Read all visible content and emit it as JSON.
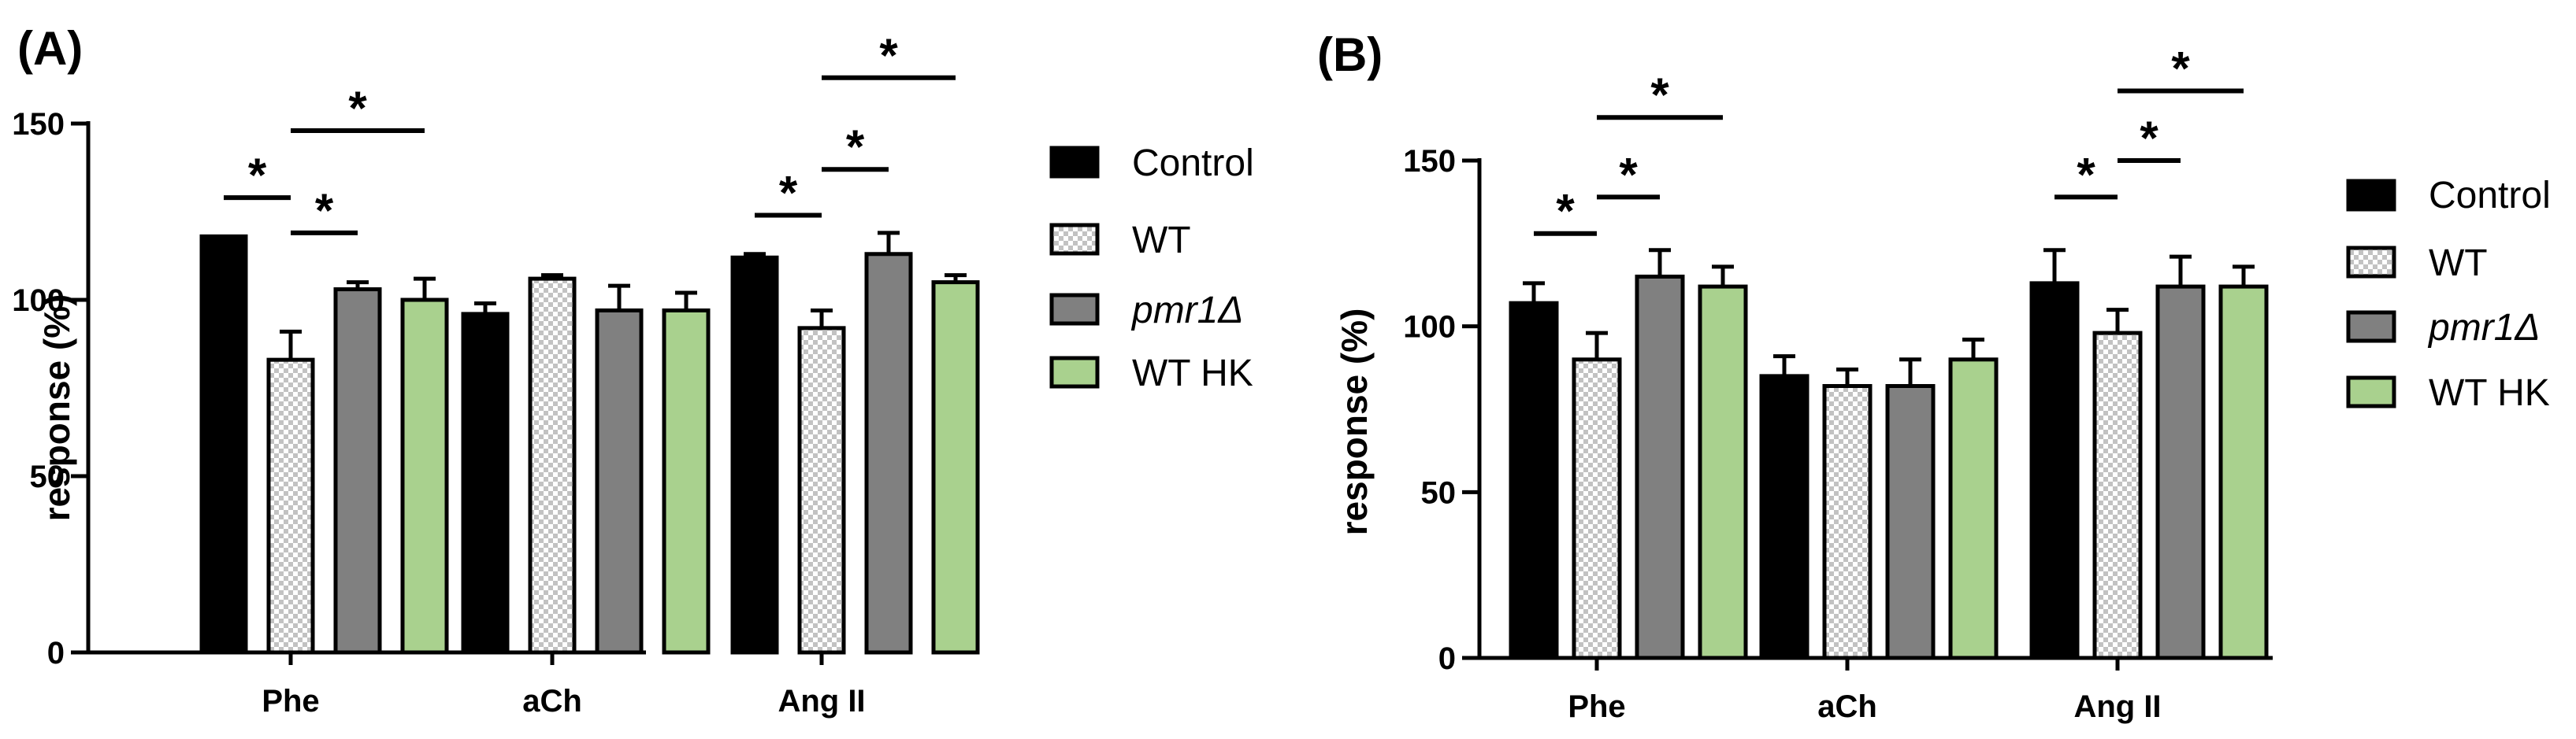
{
  "colors": {
    "Control": "#000000",
    "WT_check_a": "#ffffff",
    "WT_check_b": "#c2c2c2",
    "pmr1": "#808080",
    "WT HK": "#a9d18e",
    "axis": "#000000"
  },
  "legend": {
    "items": [
      {
        "label": "Control",
        "italic": false
      },
      {
        "label": "WT",
        "italic": false
      },
      {
        "label": "pmr1Δ",
        "italic": true
      },
      {
        "label": "WT HK",
        "italic": false
      }
    ]
  },
  "chart_data": [
    {
      "panel": "(A)",
      "type": "bar",
      "ylabel": "response (%)",
      "xlabel": "",
      "ylim": [
        0,
        150
      ],
      "yticks": [
        0,
        50,
        100,
        150
      ],
      "categories": [
        "Phe",
        "aCh",
        "Ang II"
      ],
      "series": [
        {
          "name": "Control",
          "values": [
            118,
            96,
            112
          ],
          "errors": [
            0,
            3,
            1
          ]
        },
        {
          "name": "WT",
          "values": [
            83,
            106,
            92
          ],
          "errors": [
            8,
            1,
            5
          ]
        },
        {
          "name": "pmr1Δ",
          "values": [
            103,
            97,
            113
          ],
          "errors": [
            2,
            7,
            6
          ]
        },
        {
          "name": "WT HK",
          "values": [
            100,
            97,
            105
          ],
          "errors": [
            6,
            5,
            2
          ]
        }
      ],
      "significance": [
        {
          "category": "Phe",
          "from": "Control",
          "to": "WT",
          "value": 129,
          "label": "*"
        },
        {
          "category": "Phe",
          "from": "WT",
          "to": "pmr1Δ",
          "value": 119,
          "label": "*"
        },
        {
          "category": "Phe",
          "from": "WT",
          "to": "WT HK",
          "value": 148,
          "label": "*"
        },
        {
          "category": "Ang II",
          "from": "Control",
          "to": "WT",
          "value": 124,
          "label": "*"
        },
        {
          "category": "Ang II",
          "from": "WT",
          "to": "pmr1Δ",
          "value": 137,
          "label": "*"
        },
        {
          "category": "Ang II",
          "from": "WT",
          "to": "WT HK",
          "value": 163,
          "label": "*"
        }
      ]
    },
    {
      "panel": "(B)",
      "type": "bar",
      "ylabel": "response (%)",
      "xlabel": "",
      "ylim": [
        0,
        150
      ],
      "yticks": [
        0,
        50,
        100,
        150
      ],
      "categories": [
        "Phe",
        "aCh",
        "Ang II"
      ],
      "series": [
        {
          "name": "Control",
          "values": [
            107,
            85,
            113
          ],
          "errors": [
            6,
            6,
            10
          ]
        },
        {
          "name": "WT",
          "values": [
            90,
            82,
            98
          ],
          "errors": [
            8,
            5,
            7
          ]
        },
        {
          "name": "pmr1Δ",
          "values": [
            115,
            82,
            112
          ],
          "errors": [
            8,
            8,
            9
          ]
        },
        {
          "name": "WT HK",
          "values": [
            112,
            90,
            112
          ],
          "errors": [
            6,
            6,
            6
          ]
        }
      ],
      "significance": [
        {
          "category": "Phe",
          "from": "Control",
          "to": "WT",
          "value": 128,
          "label": "*"
        },
        {
          "category": "Phe",
          "from": "WT",
          "to": "pmr1Δ",
          "value": 139,
          "label": "*"
        },
        {
          "category": "Phe",
          "from": "WT",
          "to": "WT HK",
          "value": 163,
          "label": "*"
        },
        {
          "category": "Ang II",
          "from": "Control",
          "to": "WT",
          "value": 139,
          "label": "*"
        },
        {
          "category": "Ang II",
          "from": "WT",
          "to": "pmr1Δ",
          "value": 150,
          "label": "*"
        },
        {
          "category": "Ang II",
          "from": "WT",
          "to": "WT HK",
          "value": 171,
          "label": "*"
        }
      ]
    }
  ]
}
